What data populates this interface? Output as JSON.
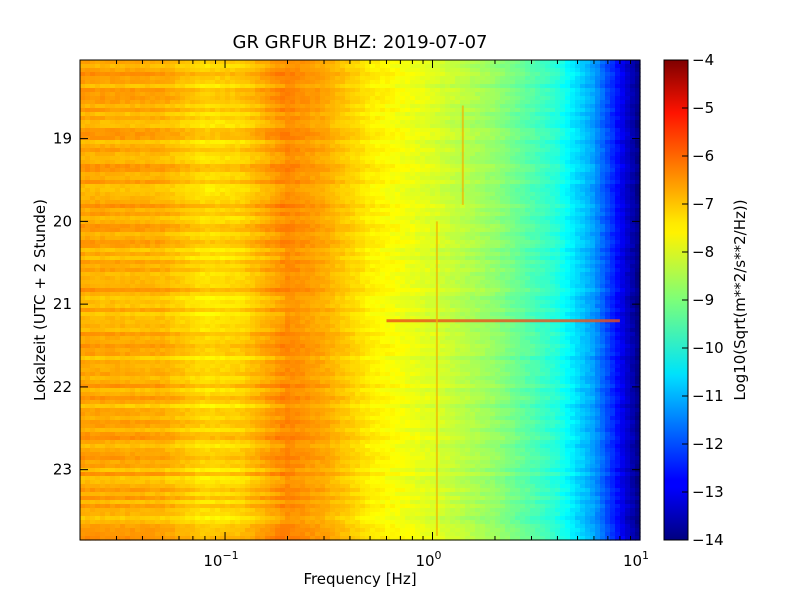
{
  "chart_data": {
    "type": "heatmap",
    "title": "GR GRFUR BHZ: 2019-07-07",
    "xlabel": "Frequency [Hz]",
    "ylabel": "Lokalzeit (UTC + 2 Stunde)",
    "x_scale": "log",
    "xlim": [
      0.02,
      10
    ],
    "x_ticks": [
      {
        "value": 0.1,
        "base": "10",
        "exp": "−1"
      },
      {
        "value": 1,
        "base": "10",
        "exp": "0"
      },
      {
        "value": 10,
        "base": "10",
        "exp": "1"
      }
    ],
    "ylim": [
      18.05,
      23.85
    ],
    "y_inverted": true,
    "y_ticks": [
      19,
      20,
      21,
      22,
      23
    ],
    "colorbar": {
      "label": "Log10(Sqrt(m**2/s**2/Hz))",
      "range": [
        -14,
        -4
      ],
      "ticks": [
        "−4",
        "−5",
        "−6",
        "−7",
        "−8",
        "−9",
        "−10",
        "−11",
        "−12",
        "−13",
        "−14"
      ],
      "colormap": "jet"
    },
    "spectrum_profile": [
      {
        "frequency": 0.02,
        "level": -6.9
      },
      {
        "frequency": 0.05,
        "level": -7.0
      },
      {
        "frequency": 0.08,
        "level": -7.4
      },
      {
        "frequency": 0.12,
        "level": -7.3
      },
      {
        "frequency": 0.2,
        "level": -6.6
      },
      {
        "frequency": 0.3,
        "level": -6.9
      },
      {
        "frequency": 0.5,
        "level": -7.6
      },
      {
        "frequency": 1.0,
        "level": -8.1
      },
      {
        "frequency": 2.0,
        "level": -8.8
      },
      {
        "frequency": 4.0,
        "level": -9.9
      },
      {
        "frequency": 6.0,
        "level": -11.2
      },
      {
        "frequency": 8.0,
        "level": -12.8
      },
      {
        "frequency": 10.0,
        "level": -14.0
      }
    ],
    "features": [
      {
        "type": "horizontal-streak",
        "time": 21.2,
        "from_frequency": 0.6,
        "to_frequency": 8
      },
      {
        "type": "vertical-line",
        "frequency": 1.05,
        "from_time": 20.0,
        "to_time": 23.8
      },
      {
        "type": "vertical-line",
        "frequency": 1.4,
        "from_time": 18.6,
        "to_time": 19.8
      }
    ]
  }
}
